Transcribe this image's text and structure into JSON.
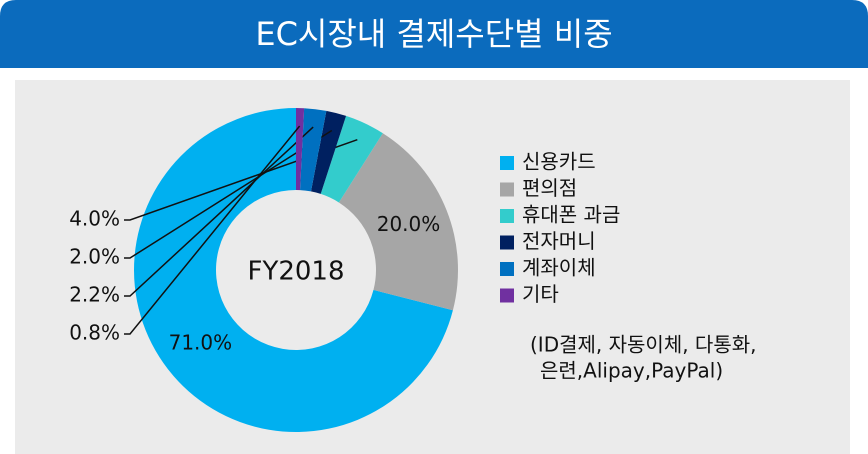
{
  "chart_data": {
    "type": "donut",
    "title": "EC시장내 결제수단별 비중",
    "center_label": "FY2018",
    "categories": [
      "신용카드",
      "편의점",
      "휴대폰 과금",
      "전자머니",
      "계좌이체",
      "기타"
    ],
    "values": [
      71.0,
      20.0,
      4.0,
      2.0,
      2.2,
      0.8
    ],
    "value_labels": [
      "71.0%",
      "20.0%",
      "4.0%",
      "2.0%",
      "2.2%",
      "0.8%"
    ],
    "colors": [
      "#00b0f0",
      "#a6a6a6",
      "#33cccc",
      "#002060",
      "#0070c0",
      "#7030a0"
    ],
    "legend_note": [
      "(ID결제, 자동이체, 다통화,",
      "은련,Alipay,PayPal)"
    ]
  }
}
